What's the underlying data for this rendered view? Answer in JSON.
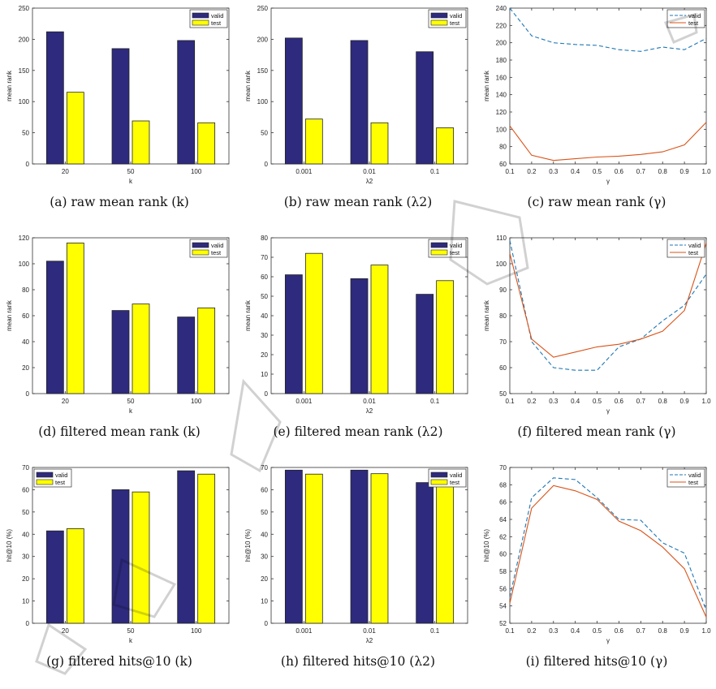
{
  "colors": {
    "valid_bar": "#2e2a7e",
    "test_bar": "#ffff00",
    "valid_line": "#1f77b4",
    "test_line": "#d95319"
  },
  "panels": [
    {
      "caption": "(a) raw mean rank (k)",
      "chart_data": {
        "type": "bar",
        "categories": [
          "20",
          "50",
          "100"
        ],
        "xlabel": "k",
        "ylabel": "mean rank",
        "ylim": [
          0,
          250
        ],
        "yticks": [
          0,
          50,
          100,
          150,
          200,
          250
        ],
        "legend_position": "top-right",
        "series": [
          {
            "name": "valid",
            "values": [
              212,
              185,
              198
            ]
          },
          {
            "name": "test",
            "values": [
              115,
              69,
              66
            ]
          }
        ]
      }
    },
    {
      "caption": "(b) raw mean rank (λ2)",
      "chart_data": {
        "type": "bar",
        "categories": [
          "0.001",
          "0.01",
          "0.1"
        ],
        "xlabel": "λ2",
        "ylabel": "mean rank",
        "ylim": [
          0,
          250
        ],
        "yticks": [
          0,
          50,
          100,
          150,
          200,
          250
        ],
        "legend_position": "top-right",
        "series": [
          {
            "name": "valid",
            "values": [
              202,
              198,
              180
            ]
          },
          {
            "name": "test",
            "values": [
              72,
              66,
              58
            ]
          }
        ]
      }
    },
    {
      "caption": "(c) raw mean rank (γ)",
      "chart_data": {
        "type": "line",
        "x": [
          0.1,
          0.2,
          0.3,
          0.4,
          0.5,
          0.6,
          0.7,
          0.8,
          0.9,
          1.0
        ],
        "xticks": [
          "0.1",
          "0.2",
          "0.3",
          "0.4",
          "0.5",
          "0.6",
          "0.7",
          "0.8",
          "0.9",
          "1.0"
        ],
        "xlim": [
          0.1,
          1.0
        ],
        "xlabel": "γ",
        "ylabel": "mean rank",
        "ylim": [
          60,
          240
        ],
        "yticks": [
          60,
          80,
          100,
          120,
          140,
          160,
          180,
          200,
          220,
          240
        ],
        "legend_position": "top-right",
        "series": [
          {
            "name": "valid",
            "style": "dashed",
            "values": [
              240,
              208,
              200,
              198,
              197,
              192,
              190,
              195,
              192,
              205
            ]
          },
          {
            "name": "test",
            "style": "solid",
            "values": [
              104,
              70,
              64,
              66,
              68,
              69,
              71,
              74,
              82,
              108
            ]
          }
        ]
      }
    },
    {
      "caption": "(d) filtered mean rank (k)",
      "chart_data": {
        "type": "bar",
        "categories": [
          "20",
          "50",
          "100"
        ],
        "xlabel": "k",
        "ylabel": "mean rank",
        "ylim": [
          0,
          120
        ],
        "yticks": [
          0,
          20,
          40,
          60,
          80,
          100,
          120
        ],
        "legend_position": "top-right",
        "series": [
          {
            "name": "valid",
            "values": [
              102,
              64,
              59
            ]
          },
          {
            "name": "test",
            "values": [
              116,
              69,
              66
            ]
          }
        ]
      }
    },
    {
      "caption": "(e) filtered mean rank (λ2)",
      "chart_data": {
        "type": "bar",
        "categories": [
          "0.001",
          "0.01",
          "0.1"
        ],
        "xlabel": "λ2",
        "ylabel": "mean rank",
        "ylim": [
          0,
          80
        ],
        "yticks": [
          0,
          10,
          20,
          30,
          40,
          50,
          60,
          70,
          80
        ],
        "legend_position": "top-right",
        "series": [
          {
            "name": "valid",
            "values": [
              61,
              59,
              51
            ]
          },
          {
            "name": "test",
            "values": [
              72,
              66,
              58
            ]
          }
        ]
      }
    },
    {
      "caption": "(f) filtered mean rank (γ)",
      "chart_data": {
        "type": "line",
        "x": [
          0.1,
          0.2,
          0.3,
          0.4,
          0.5,
          0.6,
          0.7,
          0.8,
          0.9,
          1.0
        ],
        "xticks": [
          "0.1",
          "0.2",
          "0.3",
          "0.4",
          "0.5",
          "0.6",
          "0.7",
          "0.8",
          "0.9",
          "1.0"
        ],
        "xlim": [
          0.1,
          1.0
        ],
        "xlabel": "γ",
        "ylabel": "mean rank",
        "ylim": [
          50,
          110
        ],
        "yticks": [
          50,
          60,
          70,
          80,
          90,
          100,
          110
        ],
        "legend_position": "top-right",
        "series": [
          {
            "name": "valid",
            "style": "dashed",
            "values": [
              109,
              70,
              60,
              59,
              59,
              68,
              71,
              78,
              84,
              96
            ]
          },
          {
            "name": "test",
            "style": "solid",
            "values": [
              104,
              71,
              64,
              66,
              68,
              69,
              71,
              74,
              82,
              108
            ]
          }
        ]
      }
    },
    {
      "caption": "(g) filtered hits@10 (k)",
      "chart_data": {
        "type": "bar",
        "categories": [
          "20",
          "50",
          "100"
        ],
        "xlabel": "k",
        "ylabel": "hit@10 (%)",
        "ylim": [
          0,
          70
        ],
        "yticks": [
          0,
          10,
          20,
          30,
          40,
          50,
          60,
          70
        ],
        "legend_position": "top-left",
        "series": [
          {
            "name": "valid",
            "values": [
              41.5,
              60,
              68.5
            ]
          },
          {
            "name": "test",
            "values": [
              42.5,
              59,
              67
            ]
          }
        ]
      }
    },
    {
      "caption": "(h) filtered hits@10 (λ2)",
      "chart_data": {
        "type": "bar",
        "categories": [
          "0.001",
          "0.01",
          "0.1"
        ],
        "xlabel": "λ2",
        "ylabel": "hit@10 (%)",
        "ylim": [
          0,
          70
        ],
        "yticks": [
          0,
          10,
          20,
          30,
          40,
          50,
          60,
          70
        ],
        "legend_position": "top-right",
        "series": [
          {
            "name": "valid",
            "values": [
              68.8,
              68.8,
              63.2
            ]
          },
          {
            "name": "test",
            "values": [
              67,
              67.2,
              63.3
            ]
          }
        ]
      }
    },
    {
      "caption": "(i) filtered hits@10 (γ)",
      "chart_data": {
        "type": "line",
        "x": [
          0.1,
          0.2,
          0.3,
          0.4,
          0.5,
          0.6,
          0.7,
          0.8,
          0.9,
          1.0
        ],
        "xticks": [
          "0.1",
          "0.2",
          "0.3",
          "0.4",
          "0.5",
          "0.6",
          "0.7",
          "0.8",
          "0.9",
          "1.0"
        ],
        "xlim": [
          0.1,
          1.0
        ],
        "xlabel": "γ",
        "ylabel": "hit@10 (%)",
        "ylim": [
          52,
          70
        ],
        "yticks": [
          52,
          54,
          56,
          58,
          60,
          62,
          64,
          66,
          68,
          70
        ],
        "legend_position": "top-right",
        "series": [
          {
            "name": "valid",
            "style": "dashed",
            "values": [
              55,
              66.5,
              68.8,
              68.6,
              66.5,
              64,
              63.9,
              61.3,
              60.1,
              53.5
            ]
          },
          {
            "name": "test",
            "style": "solid",
            "values": [
              54.3,
              65.3,
              67.9,
              67.3,
              66.3,
              63.8,
              62.7,
              60.8,
              58.3,
              52.7
            ]
          }
        ]
      }
    }
  ]
}
